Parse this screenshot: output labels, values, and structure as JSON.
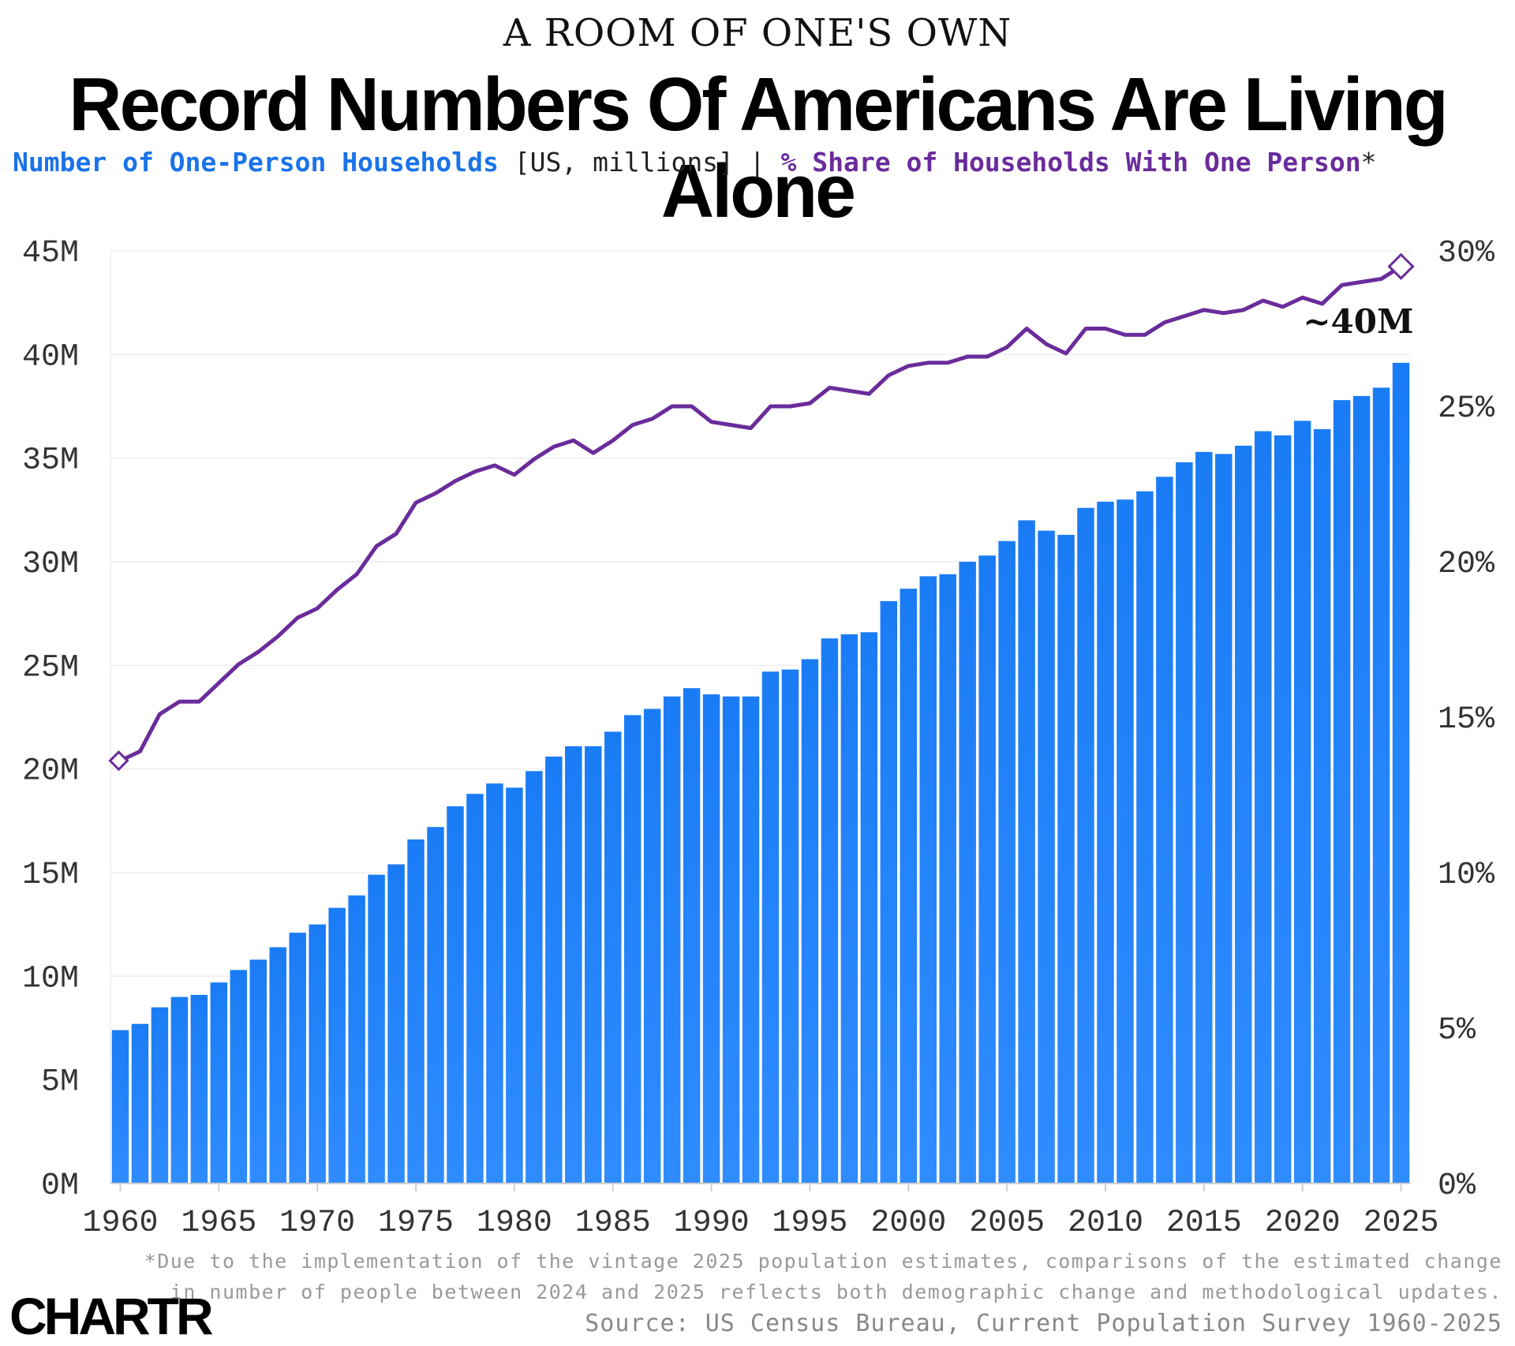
{
  "header": {
    "kicker": "A ROOM OF ONE'S OWN",
    "title": "Record Numbers Of Americans Are Living Alone",
    "subtitle_series1": "Number of One-Person Households",
    "subtitle_units": " [US, millions] | ",
    "subtitle_series2": "% Share of Households With One Person",
    "subtitle_star": "*"
  },
  "footer": {
    "note_line1": "*Due to the implementation of the vintage 2025 population estimates, comparisons of the estimated change",
    "note_line2": "in number of people between 2024 and 2025 reflects both demographic change and methodological updates.",
    "source": "Source: US Census Bureau, Current Population Survey 1960-2025",
    "logo": "CHARTR"
  },
  "colors": {
    "bar": "#1a7cf5",
    "line": "#6a2c9b",
    "grid": "#eeeeee"
  },
  "chart_data": {
    "type": "bar",
    "title": "Record Numbers Of Americans Are Living Alone",
    "x": [
      1960,
      1961,
      1962,
      1963,
      1964,
      1965,
      1966,
      1967,
      1968,
      1969,
      1970,
      1971,
      1972,
      1973,
      1974,
      1975,
      1976,
      1977,
      1978,
      1979,
      1980,
      1981,
      1982,
      1983,
      1984,
      1985,
      1986,
      1987,
      1988,
      1989,
      1990,
      1991,
      1992,
      1993,
      1994,
      1995,
      1996,
      1997,
      1998,
      1999,
      2000,
      2001,
      2002,
      2003,
      2004,
      2005,
      2006,
      2007,
      2008,
      2009,
      2010,
      2011,
      2012,
      2013,
      2014,
      2015,
      2016,
      2017,
      2018,
      2019,
      2020,
      2021,
      2022,
      2023,
      2024,
      2025
    ],
    "series": [
      {
        "name": "Number of One-Person Households",
        "axis": "left",
        "type": "bar",
        "values": [
          7.4,
          7.7,
          8.5,
          9.0,
          9.1,
          9.7,
          10.3,
          10.8,
          11.4,
          12.1,
          12.5,
          13.3,
          13.9,
          14.9,
          15.4,
          16.6,
          17.2,
          18.2,
          18.8,
          19.3,
          19.1,
          19.9,
          20.6,
          21.1,
          21.1,
          21.8,
          22.6,
          22.9,
          23.5,
          23.9,
          23.6,
          23.5,
          23.5,
          24.7,
          24.8,
          25.3,
          26.3,
          26.5,
          26.6,
          28.1,
          28.7,
          29.3,
          29.4,
          30.0,
          30.3,
          31.0,
          32.0,
          31.5,
          31.3,
          32.6,
          32.9,
          33.0,
          33.4,
          34.1,
          34.8,
          35.3,
          35.2,
          35.6,
          36.3,
          36.1,
          36.8,
          36.4,
          37.8,
          38.0,
          38.4,
          39.6
        ]
      },
      {
        "name": "% Share of Households With One Person",
        "axis": "right",
        "type": "line",
        "values": [
          13.6,
          13.9,
          15.1,
          15.5,
          15.5,
          16.1,
          16.7,
          17.1,
          17.6,
          18.2,
          18.5,
          19.1,
          19.6,
          20.5,
          20.9,
          21.9,
          22.2,
          22.6,
          22.9,
          23.1,
          22.8,
          23.3,
          23.7,
          23.9,
          23.5,
          23.9,
          24.4,
          24.6,
          25.0,
          25.0,
          24.5,
          24.4,
          24.3,
          25.0,
          25.0,
          25.1,
          25.6,
          25.5,
          25.4,
          26.0,
          26.3,
          26.4,
          26.4,
          26.6,
          26.6,
          26.9,
          27.5,
          27.0,
          26.7,
          27.5,
          27.5,
          27.3,
          27.3,
          27.7,
          27.9,
          28.1,
          28.0,
          28.1,
          28.4,
          28.2,
          28.5,
          28.3,
          28.9,
          29.0,
          29.1,
          29.5
        ]
      }
    ],
    "y_left": {
      "min": 0,
      "max": 45,
      "ticks": [
        0,
        5,
        10,
        15,
        20,
        25,
        30,
        35,
        40,
        45
      ],
      "tick_labels": [
        "0M",
        "5M",
        "10M",
        "15M",
        "20M",
        "25M",
        "30M",
        "35M",
        "40M",
        "45M"
      ]
    },
    "y_right": {
      "min": 0,
      "max": 30,
      "ticks": [
        0,
        5,
        10,
        15,
        20,
        25,
        30
      ],
      "tick_labels": [
        "0%",
        "5%",
        "10%",
        "15%",
        "20%",
        "25%",
        "30%"
      ]
    },
    "x_ticks": [
      1960,
      1965,
      1970,
      1975,
      1980,
      1985,
      1990,
      1995,
      2000,
      2005,
      2010,
      2015,
      2020,
      2025
    ],
    "x_tick_labels": [
      "1960",
      "1965",
      "1970",
      "1975",
      "1980",
      "1985",
      "1990",
      "1995",
      "2000",
      "2005",
      "2010",
      "2015",
      "2020",
      "2025"
    ],
    "annotation": {
      "text": "~40M",
      "year": 2025
    },
    "grid": true
  }
}
